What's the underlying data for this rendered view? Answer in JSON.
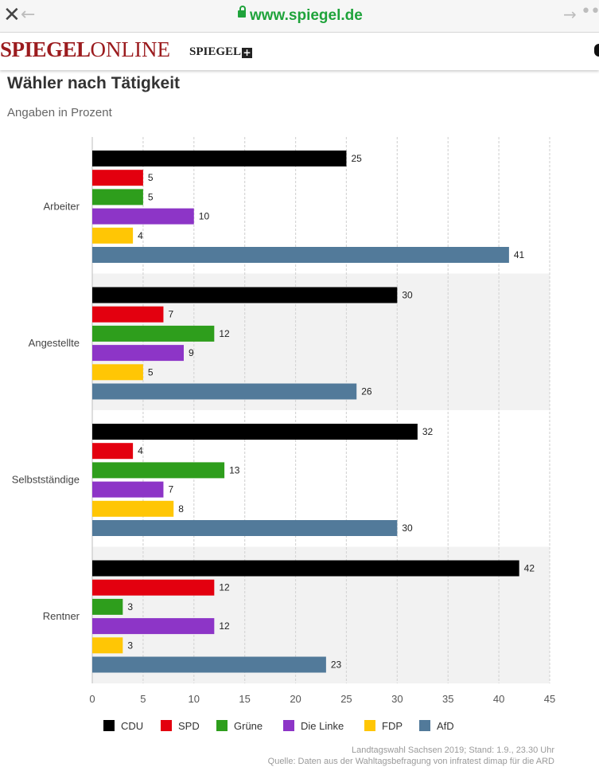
{
  "browser": {
    "close_icon": "close-icon",
    "back_icon": "back-arrow-icon",
    "url": "www.spiegel.de",
    "lock_icon": "lock-icon",
    "forward_icon": "forward-arrow-icon",
    "more_icon": "more-icon"
  },
  "site": {
    "logo_left": "SPIEGEL",
    "logo_right": "ONLINE",
    "plus_label": "SPIEGEL",
    "plus_symbol": "+"
  },
  "colors": {
    "CDU": "#000000",
    "SPD": "#e3000f",
    "Grüne": "#2e9e1c",
    "Die Linke": "#8d35c7",
    "FDP": "#ffc605",
    "AfD": "#527a9a"
  },
  "chart_data": {
    "type": "bar",
    "orientation": "horizontal",
    "title": "Wähler nach Tätigkeit",
    "subtitle": "Angaben in Prozent",
    "categories": [
      "Arbeiter",
      "Angestellte",
      "Selbstständige",
      "Rentner"
    ],
    "series": [
      {
        "name": "CDU",
        "values": [
          25,
          30,
          32,
          42
        ]
      },
      {
        "name": "SPD",
        "values": [
          5,
          7,
          4,
          12
        ]
      },
      {
        "name": "Grüne",
        "values": [
          5,
          12,
          13,
          3
        ]
      },
      {
        "name": "Die Linke",
        "values": [
          10,
          9,
          7,
          12
        ]
      },
      {
        "name": "FDP",
        "values": [
          4,
          5,
          8,
          3
        ]
      },
      {
        "name": "AfD",
        "values": [
          41,
          26,
          30,
          23
        ]
      }
    ],
    "xlim": [
      0,
      45
    ],
    "xticks": [
      0,
      5,
      10,
      15,
      20,
      25,
      30,
      35,
      40,
      45
    ],
    "grid": true,
    "legend_position": "bottom",
    "source_lines": [
      "Landtagswahl Sachsen 2019; Stand: 1.9., 23.30 Uhr",
      "Quelle: Daten aus der Wahltagsbefragung von infratest dimap für die ARD"
    ]
  }
}
